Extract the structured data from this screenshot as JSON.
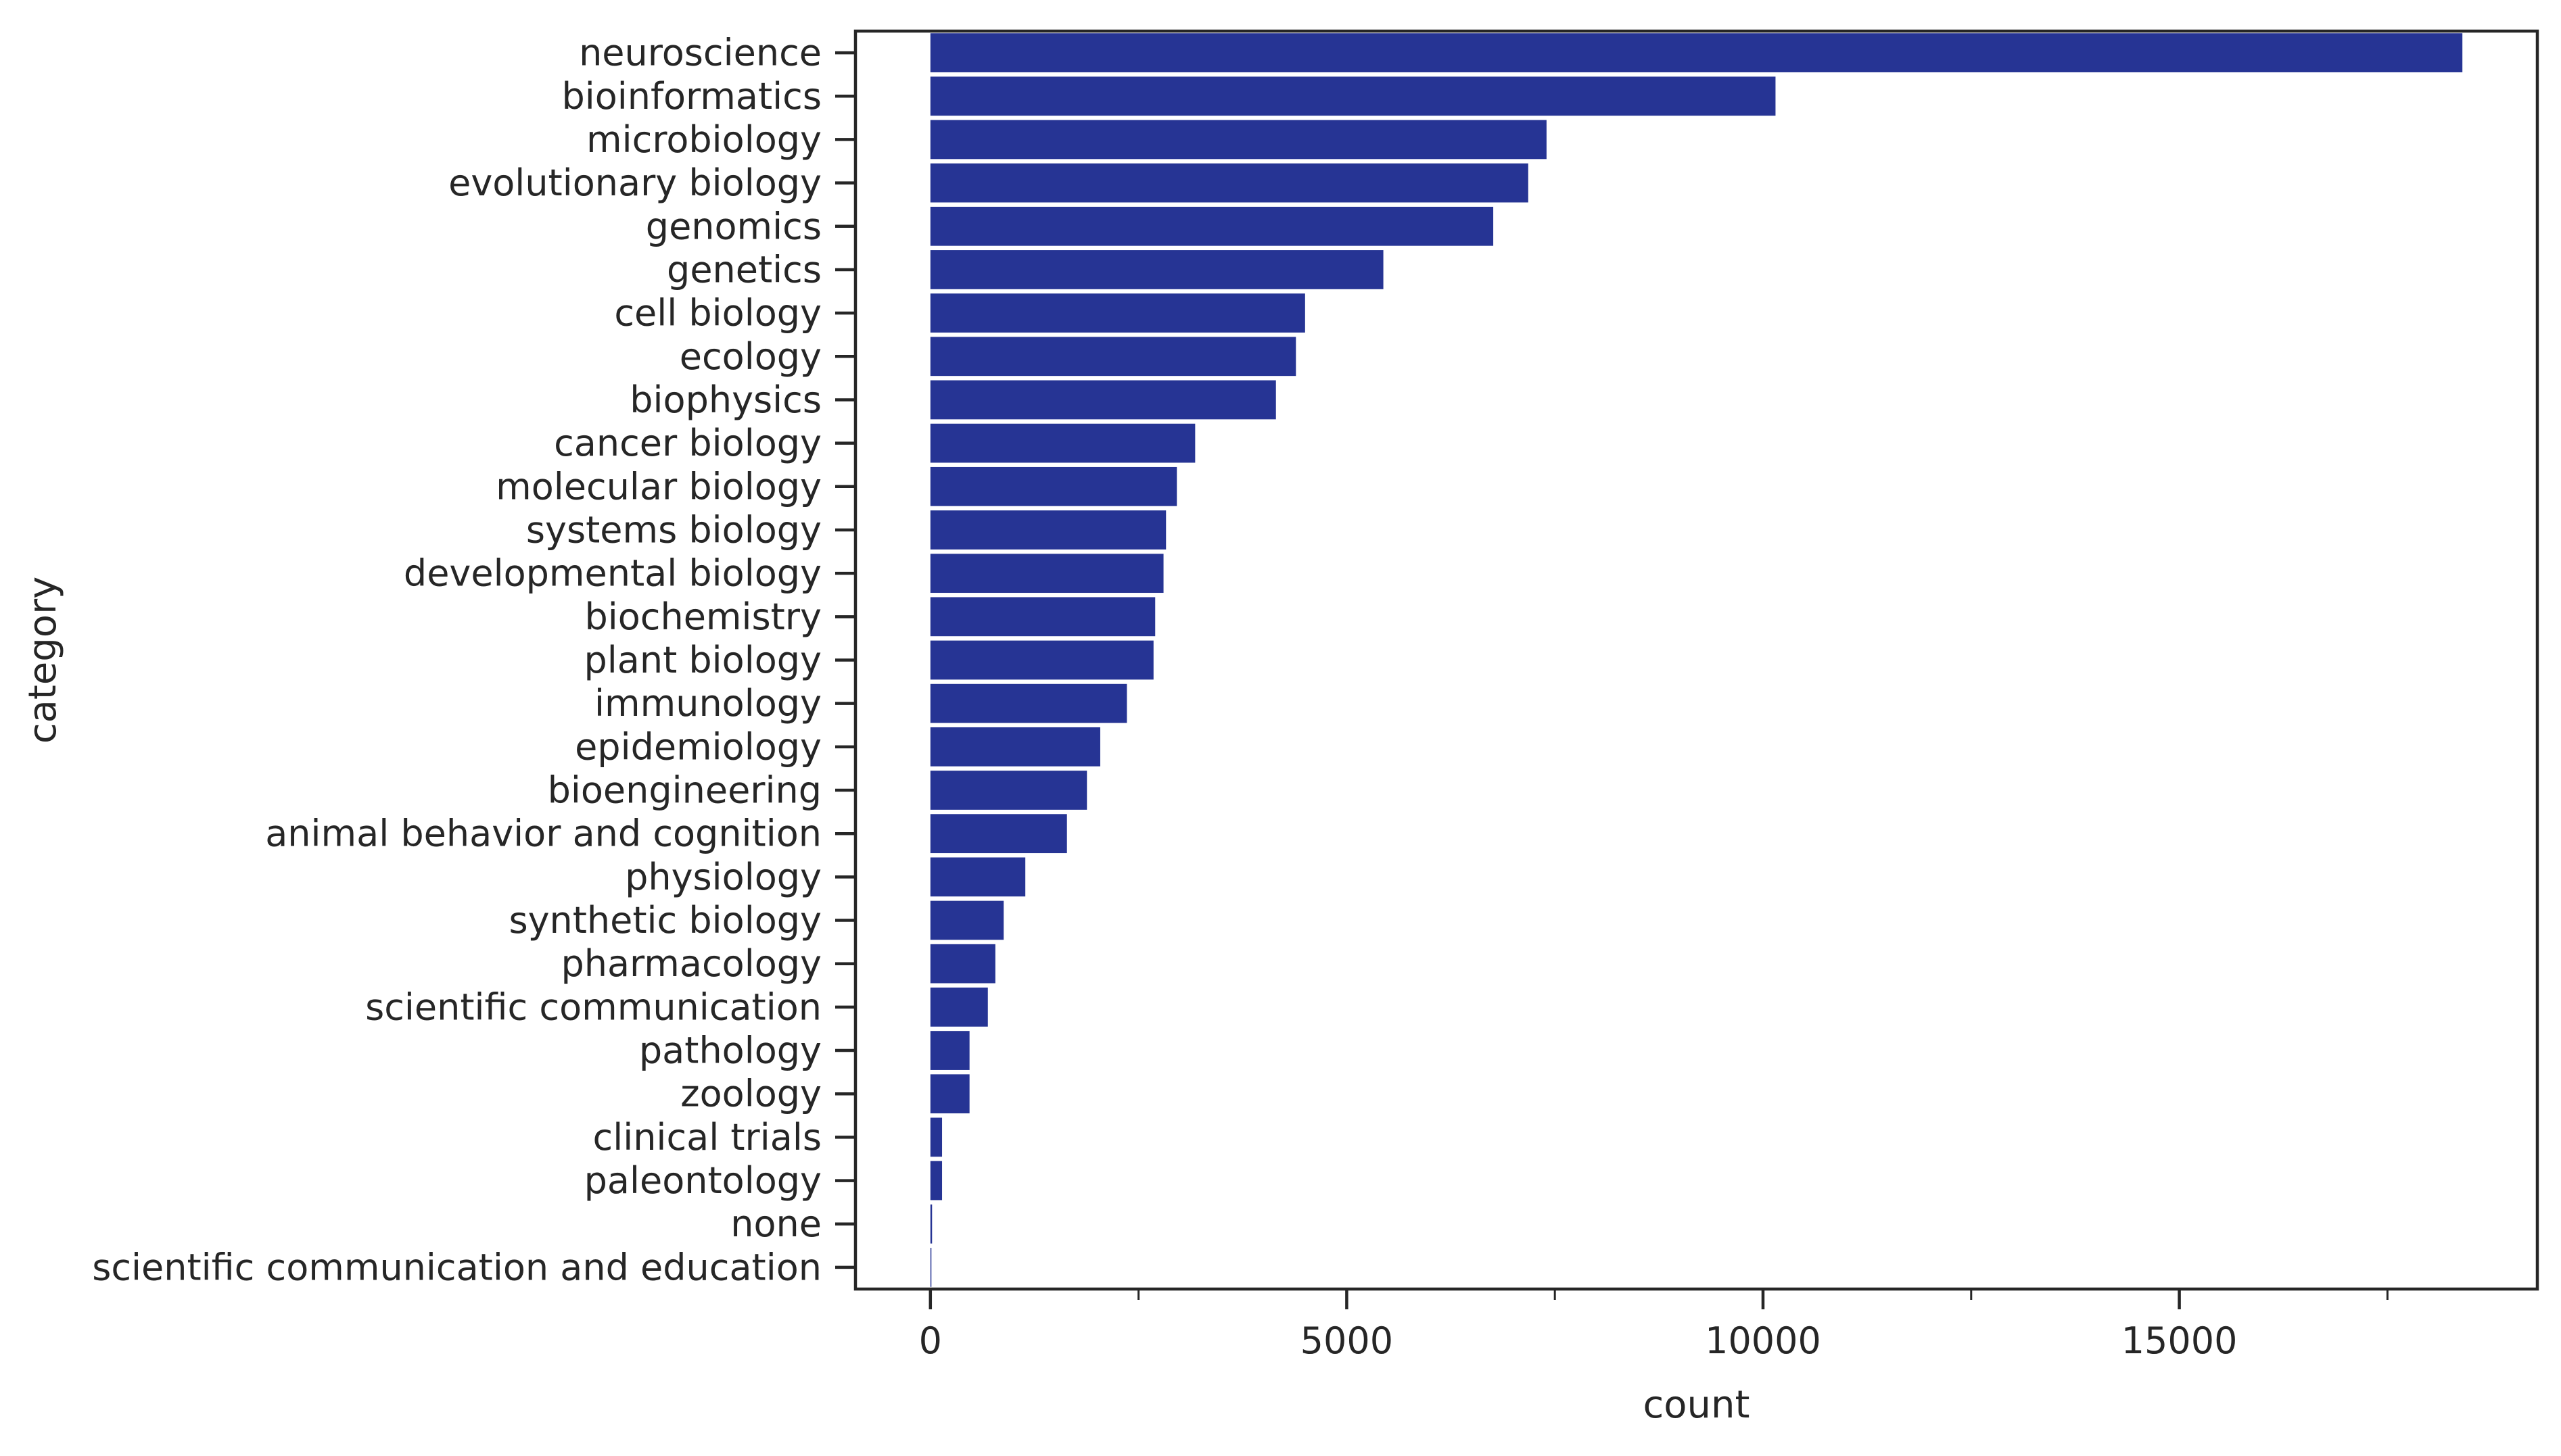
{
  "chart_data": {
    "type": "bar",
    "orientation": "horizontal",
    "xlabel": "count",
    "ylabel": "category",
    "xlim": [
      -900,
      19300
    ],
    "xticks_major": [
      0,
      5000,
      10000,
      15000
    ],
    "xticks_minor": [
      2500,
      7500,
      12500,
      17500
    ],
    "grid": false,
    "bar_color": "#263494",
    "categories": [
      "neuroscience",
      "bioinformatics",
      "microbiology",
      "evolutionary biology",
      "genomics",
      "genetics",
      "cell biology",
      "ecology",
      "biophysics",
      "cancer biology",
      "molecular biology",
      "systems biology",
      "developmental biology",
      "biochemistry",
      "plant biology",
      "immunology",
      "epidemiology",
      "bioengineering",
      "animal behavior and cognition",
      "physiology",
      "synthetic biology",
      "pharmacology",
      "scientific communication",
      "pathology",
      "zoology",
      "clinical trials",
      "paleontology",
      "none",
      "scientific communication and education"
    ],
    "values": [
      18400,
      10150,
      7400,
      7180,
      6760,
      5440,
      4500,
      4390,
      4150,
      3180,
      2960,
      2830,
      2800,
      2700,
      2680,
      2360,
      2040,
      1880,
      1640,
      1140,
      880,
      780,
      690,
      470,
      470,
      140,
      140,
      20,
      10
    ]
  }
}
